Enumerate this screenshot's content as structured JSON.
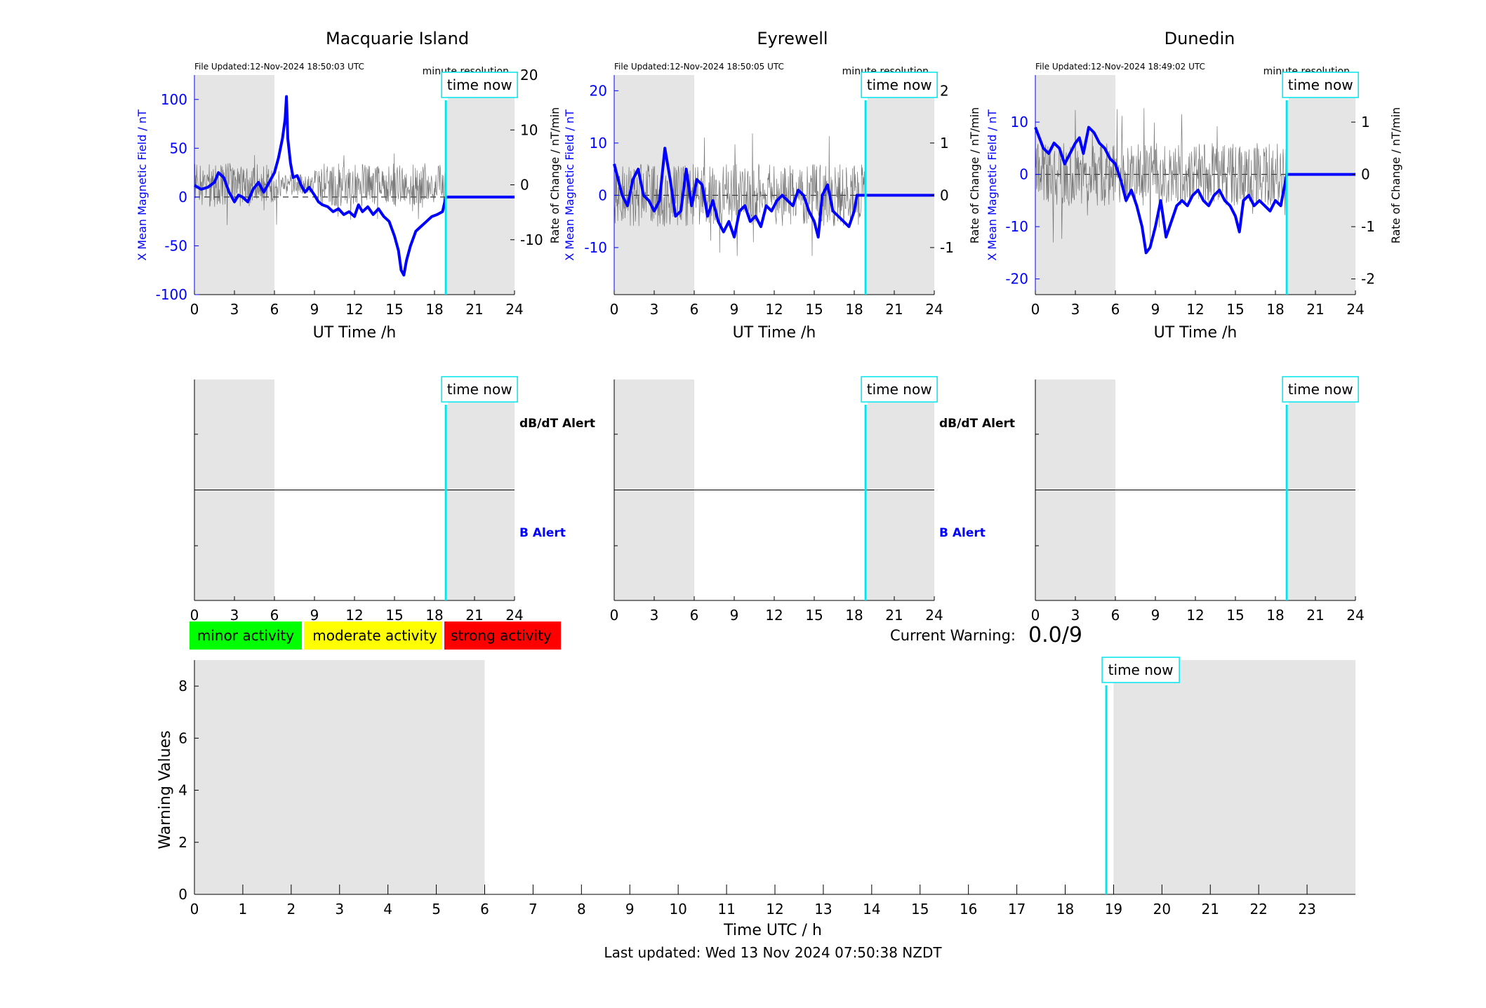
{
  "colors": {
    "background": "#ffffff",
    "shade": "#e5e5e5",
    "field_line": "#0000ff",
    "rate_line": "#555555",
    "now_line": "#00e5ee",
    "axis": "#000000",
    "minor": "#00ff00",
    "moderate": "#ffff00",
    "strong": "#ff0000"
  },
  "common": {
    "xlabel": "UT Time /h",
    "resolution": "minute resolution",
    "time_now": "time now",
    "ylabel_left": "X Mean Magnetic Field / nT",
    "ylabel_right": "Rate of Change / nT/min",
    "xticks": [
      "0",
      "3",
      "6",
      "9",
      "12",
      "15",
      "18",
      "21",
      "24"
    ],
    "dbdt_alert": "dB/dT Alert",
    "b_alert": "B Alert"
  },
  "legend": {
    "minor": "minor activity",
    "moderate": "moderate activity",
    "strong": "strong activity"
  },
  "warning": {
    "label": "Current Warning:",
    "value": "0.0/9"
  },
  "footer": "Last updated: Wed 13 Nov 2024 07:50:38 NZDT",
  "chart_data": [
    {
      "type": "line",
      "title": "Macquarie Island",
      "file_updated": "File Updated:12-Nov-2024 18:50:03 UTC",
      "xlim": [
        0,
        24
      ],
      "ylim": [
        -100,
        125
      ],
      "ylim_right": [
        -20,
        20
      ],
      "yticks": [
        -100,
        -50,
        0,
        50,
        100
      ],
      "yticks_right": [
        -10,
        0,
        10,
        20
      ],
      "shaded": [
        [
          0,
          6
        ],
        [
          19,
          24
        ]
      ],
      "now": 18.85,
      "series": [
        {
          "axis": "left",
          "x": [
            0,
            0.5,
            1,
            1.5,
            1.8,
            2.2,
            2.6,
            3,
            3.3,
            3.6,
            4,
            4.4,
            4.8,
            5.2,
            5.6,
            6,
            6.3,
            6.6,
            6.8,
            6.9,
            7.0,
            7.2,
            7.4,
            7.7,
            8.0,
            8.3,
            8.6,
            9,
            9.3,
            9.6,
            10,
            10.4,
            10.8,
            11.2,
            11.6,
            12,
            12.3,
            12.6,
            13,
            13.4,
            13.8,
            14.2,
            14.6,
            15,
            15.3,
            15.5,
            15.7,
            15.9,
            16.2,
            16.6,
            17.0,
            17.4,
            17.8,
            18.2,
            18.6,
            18.85,
            20,
            22,
            24
          ],
          "y": [
            12,
            8,
            10,
            15,
            25,
            20,
            5,
            -5,
            2,
            0,
            -5,
            8,
            15,
            5,
            15,
            25,
            40,
            60,
            80,
            103,
            60,
            35,
            20,
            22,
            12,
            5,
            10,
            2,
            -5,
            -8,
            -10,
            -15,
            -12,
            -18,
            -15,
            -20,
            -8,
            -15,
            -10,
            -18,
            -12,
            -20,
            -25,
            -40,
            -55,
            -75,
            -80,
            -65,
            -50,
            -35,
            -30,
            -25,
            -20,
            -18,
            -15,
            0,
            0,
            0,
            0
          ]
        },
        {
          "axis": "right",
          "style": "rate_noise",
          "range": [
            -4,
            4
          ]
        }
      ]
    },
    {
      "type": "line",
      "title": "Eyrewell",
      "file_updated": "File Updated:12-Nov-2024 18:50:05 UTC",
      "xlim": [
        0,
        24
      ],
      "ylim": [
        -19,
        23
      ],
      "ylim_right": [
        -1.9,
        2.3
      ],
      "yticks": [
        -10,
        0,
        10,
        20
      ],
      "yticks_right": [
        -1,
        0,
        1,
        2
      ],
      "shaded": [
        [
          0,
          6
        ],
        [
          19,
          24
        ]
      ],
      "now": 18.85,
      "series": [
        {
          "axis": "left",
          "x": [
            0,
            0.3,
            0.6,
            1,
            1.4,
            1.8,
            2.2,
            2.6,
            3,
            3.4,
            3.8,
            4.2,
            4.6,
            5,
            5.4,
            5.8,
            6.2,
            6.6,
            7,
            7.4,
            7.8,
            8.2,
            8.6,
            9,
            9.4,
            9.8,
            10.2,
            10.6,
            11,
            11.4,
            11.8,
            12.2,
            12.6,
            13,
            13.4,
            13.8,
            14.2,
            14.6,
            15,
            15.3,
            15.6,
            16,
            16.4,
            16.8,
            17.2,
            17.6,
            18,
            18.2,
            18.85,
            20,
            22,
            24
          ],
          "y": [
            6,
            3,
            0,
            -2,
            3,
            5,
            0,
            -1,
            -3,
            -1,
            9,
            3,
            -4,
            -3,
            5,
            -2,
            3,
            2,
            -4,
            -1,
            -5,
            -7,
            -5,
            -8,
            -3,
            -2,
            -5,
            -4,
            -6,
            -2,
            -3,
            -1,
            0,
            -1,
            -2,
            1,
            0,
            -3,
            -5,
            -8,
            0,
            2,
            -3,
            -4,
            -5,
            -6,
            -3,
            0,
            0,
            0,
            0,
            0
          ]
        },
        {
          "axis": "right",
          "style": "rate_noise",
          "range": [
            -0.6,
            0.6
          ]
        }
      ]
    },
    {
      "type": "line",
      "title": "Dunedin",
      "file_updated": "File Updated:12-Nov-2024 18:49:02 UTC",
      "xlim": [
        0,
        24
      ],
      "ylim": [
        -23,
        19
      ],
      "ylim_right": [
        -2.3,
        1.9
      ],
      "yticks": [
        -20,
        -10,
        0,
        10
      ],
      "yticks_right": [
        -2,
        -1,
        0,
        1
      ],
      "shaded": [
        [
          0,
          6
        ],
        [
          19,
          24
        ]
      ],
      "now": 18.85,
      "series": [
        {
          "axis": "left",
          "x": [
            0,
            0.3,
            0.6,
            1,
            1.4,
            1.8,
            2.2,
            2.6,
            3,
            3.3,
            3.6,
            4,
            4.4,
            4.8,
            5.2,
            5.6,
            6,
            6.4,
            6.8,
            7.2,
            7.6,
            8,
            8.3,
            8.6,
            9,
            9.4,
            9.8,
            10.2,
            10.6,
            11,
            11.4,
            11.8,
            12.2,
            12.6,
            13,
            13.4,
            13.8,
            14.2,
            14.6,
            15,
            15.3,
            15.6,
            16,
            16.4,
            16.8,
            17.2,
            17.6,
            18,
            18.4,
            18.85,
            20,
            22,
            24
          ],
          "y": [
            9,
            7,
            5,
            4,
            6,
            5,
            2,
            4,
            6,
            7,
            4,
            9,
            8,
            6,
            5,
            3,
            2,
            -1,
            -5,
            -3,
            -6,
            -10,
            -15,
            -14,
            -10,
            -5,
            -12,
            -9,
            -6,
            -5,
            -6,
            -4,
            -3,
            -5,
            -6,
            -4,
            -3,
            -5,
            -6,
            -8,
            -11,
            -5,
            -4,
            -6,
            -5,
            -6,
            -7,
            -5,
            -6,
            0,
            0,
            0,
            0
          ]
        },
        {
          "axis": "right",
          "style": "rate_noise",
          "range": [
            -0.6,
            0.6
          ]
        }
      ]
    },
    {
      "type": "line",
      "title": "",
      "ylabel": "Warning Values",
      "xlabel": "Time UTC / h",
      "xlim": [
        0,
        24
      ],
      "ylim": [
        0,
        9
      ],
      "xticks": [
        "0",
        "1",
        "2",
        "3",
        "4",
        "5",
        "6",
        "7",
        "8",
        "9",
        "10",
        "11",
        "12",
        "13",
        "14",
        "15",
        "16",
        "17",
        "18",
        "19",
        "20",
        "21",
        "22",
        "23"
      ],
      "yticks": [
        0,
        2,
        4,
        6,
        8
      ],
      "shaded": [
        [
          0,
          6
        ],
        [
          19,
          24
        ]
      ],
      "now": 18.85,
      "series": []
    }
  ]
}
